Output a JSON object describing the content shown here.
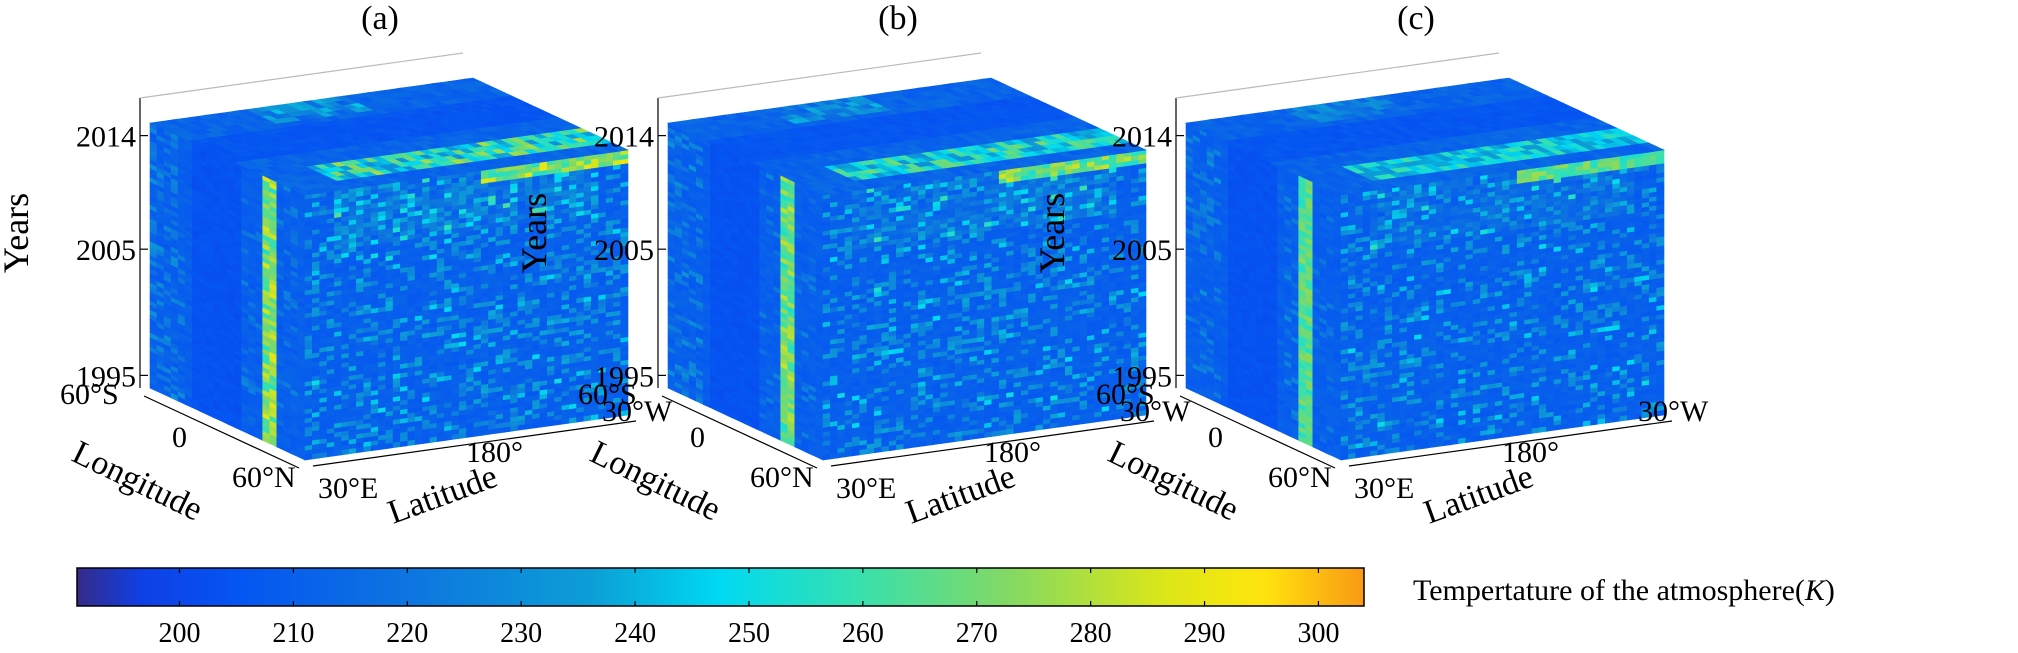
{
  "chart_data": [
    {
      "type": "heatmap",
      "panel_label": "(a)",
      "zlabel": "Years",
      "xlabel": "Longitude",
      "ylabel": "Latitude",
      "z_ticks": [
        "1995",
        "2005",
        "2014"
      ],
      "z_range": [
        1994,
        2015
      ],
      "x_ticks": [
        "60°S",
        "0",
        "60°N"
      ],
      "y_ticks": [
        "30°E",
        "180°",
        "30°W"
      ],
      "band_intensity": 1.0,
      "top_intensity": 0.95,
      "noise_level": 0.55
    },
    {
      "type": "heatmap",
      "panel_label": "(b)",
      "zlabel": "Years",
      "xlabel": "Longitude",
      "ylabel": "Latitude",
      "z_ticks": [
        "1995",
        "2005",
        "2014"
      ],
      "z_range": [
        1994,
        2015
      ],
      "x_ticks": [
        "60°S",
        "0",
        "60°N"
      ],
      "y_ticks": [
        "30°E",
        "180°",
        "30°W"
      ],
      "band_intensity": 0.85,
      "top_intensity": 0.8,
      "noise_level": 0.5
    },
    {
      "type": "heatmap",
      "panel_label": "(c)",
      "zlabel": "Years",
      "xlabel": "Longitude",
      "ylabel": "Latitude",
      "z_ticks": [
        "1995",
        "2005",
        "2014"
      ],
      "z_range": [
        1994,
        2015
      ],
      "x_ticks": [
        "60°S",
        "0",
        "60°N"
      ],
      "y_ticks": [
        "30°E",
        "180°",
        "30°W"
      ],
      "band_intensity": 0.6,
      "top_intensity": 0.6,
      "noise_level": 0.45
    }
  ],
  "colorbar": {
    "label_main": "Tempertature of the atmosphere(",
    "label_unit": "K",
    "label_end": ")",
    "range": [
      191,
      304
    ],
    "ticks": [
      200,
      210,
      220,
      230,
      240,
      250,
      260,
      270,
      280,
      290,
      300
    ],
    "colormap": "parula"
  }
}
